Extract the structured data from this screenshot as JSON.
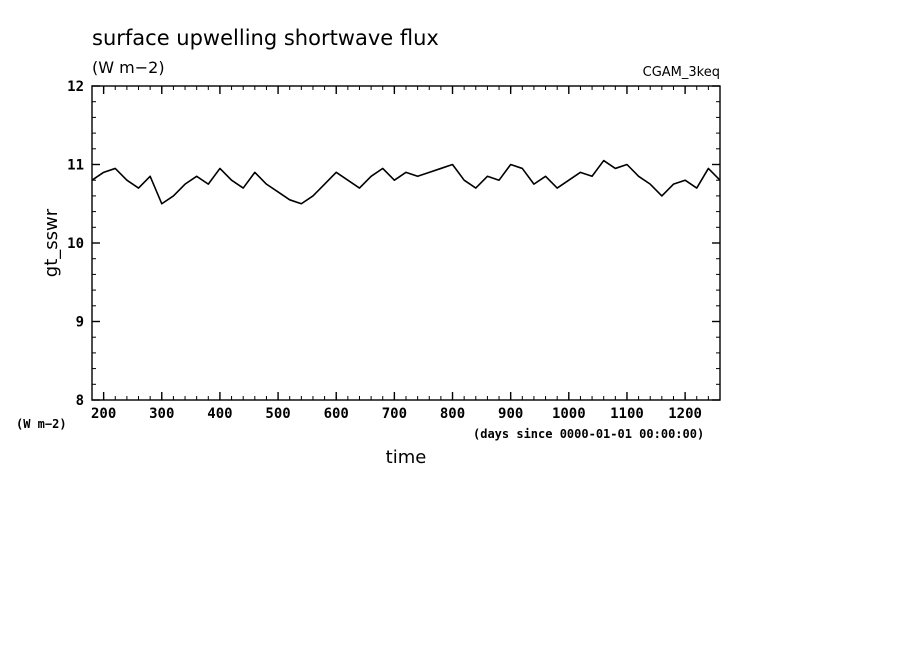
{
  "chart_data": {
    "type": "line",
    "title": "surface upwelling shortwave flux",
    "subtitle": "(W m−2)",
    "case_label": "CGAM_3keq",
    "xlabel": "time",
    "x_units": "(days since 0000-01-01 00:00:00)",
    "ylabel": "gt_sswr",
    "y_units": "(W m−2)",
    "xlim": [
      180,
      1260
    ],
    "ylim": [
      8,
      12
    ],
    "x_ticks": [
      200,
      300,
      400,
      500,
      600,
      700,
      800,
      900,
      1000,
      1100,
      1200
    ],
    "y_ticks": [
      8,
      9,
      10,
      11,
      12
    ],
    "x_minor_step": 20,
    "y_minor_step": 0.2,
    "grid": false,
    "series": [
      {
        "x": [
          180,
          200,
          220,
          240,
          260,
          280,
          300,
          320,
          340,
          360,
          380,
          400,
          420,
          440,
          460,
          480,
          500,
          520,
          540,
          560,
          580,
          600,
          620,
          640,
          660,
          680,
          700,
          720,
          740,
          760,
          780,
          800,
          820,
          840,
          860,
          880,
          900,
          920,
          940,
          960,
          980,
          1000,
          1020,
          1040,
          1060,
          1080,
          1100,
          1120,
          1140,
          1160,
          1180,
          1200,
          1220,
          1240,
          1260
        ],
        "y": [
          10.8,
          10.9,
          10.95,
          10.8,
          10.7,
          10.85,
          10.5,
          10.6,
          10.75,
          10.85,
          10.75,
          10.95,
          10.8,
          10.7,
          10.9,
          10.75,
          10.65,
          10.55,
          10.5,
          10.6,
          10.75,
          10.9,
          10.8,
          10.7,
          10.85,
          10.95,
          10.8,
          10.9,
          10.85,
          10.9,
          10.95,
          11.0,
          10.8,
          10.7,
          10.85,
          10.8,
          11.0,
          10.95,
          10.75,
          10.85,
          10.7,
          10.8,
          10.9,
          10.85,
          11.05,
          10.95,
          11.0,
          10.85,
          10.75,
          10.6,
          10.75,
          10.8,
          10.7,
          10.95,
          10.8
        ]
      }
    ]
  }
}
